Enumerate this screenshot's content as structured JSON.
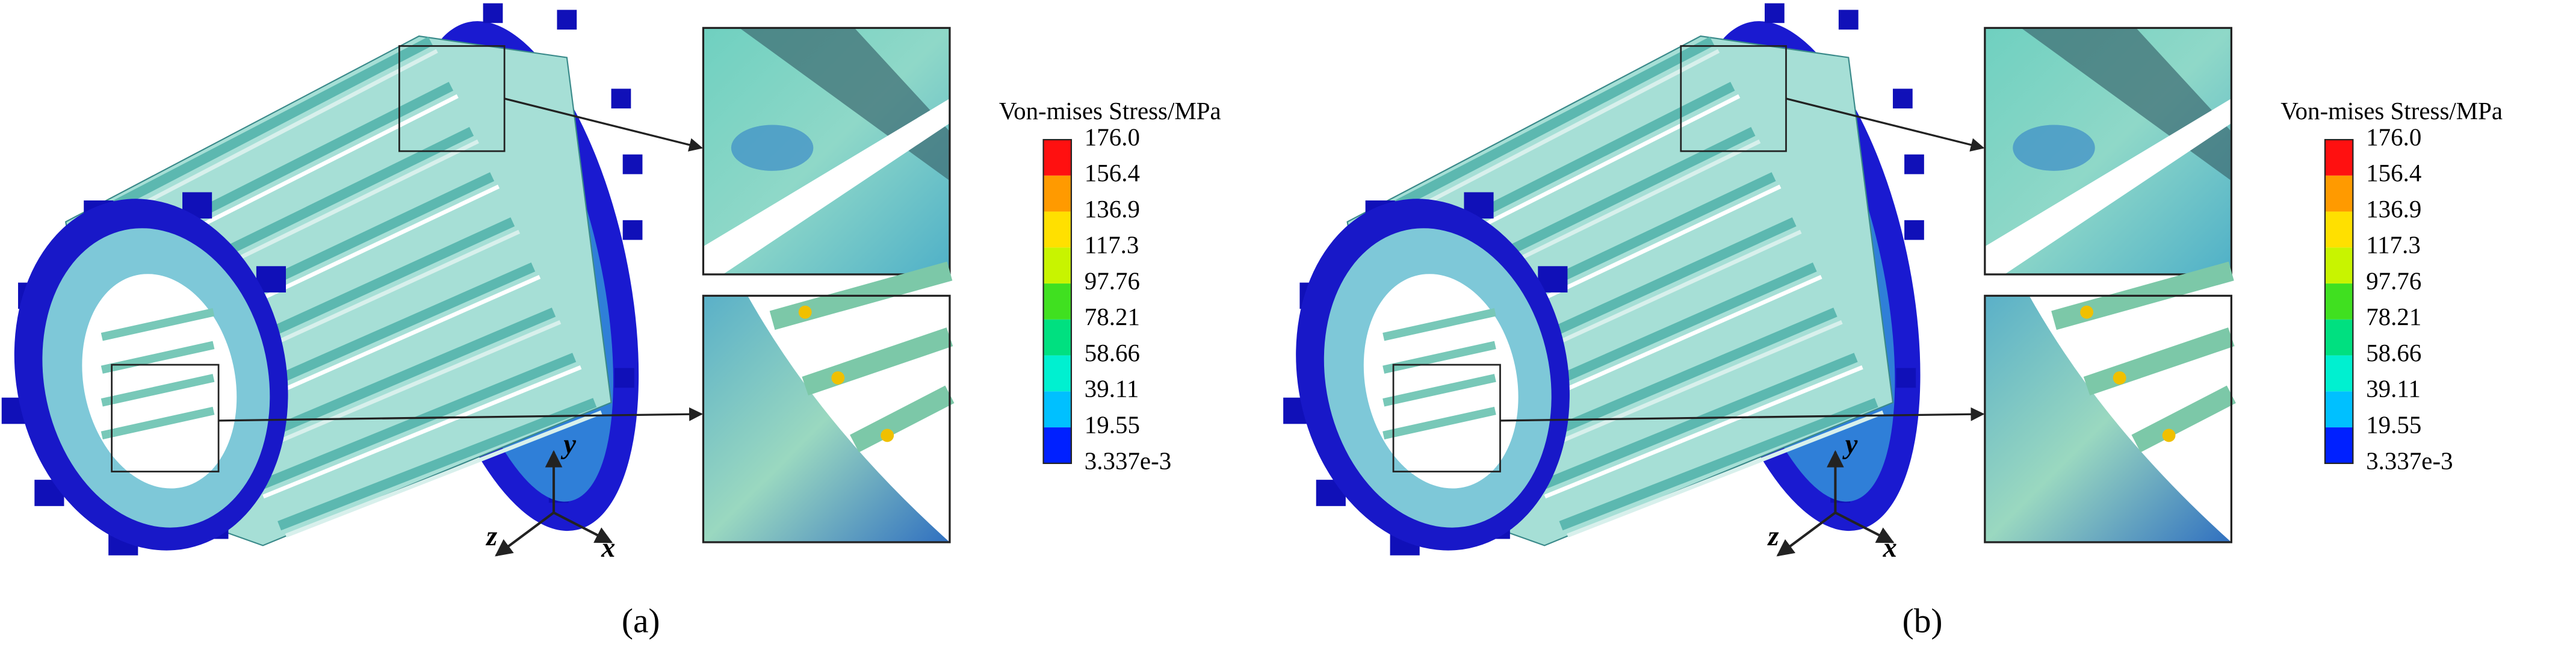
{
  "panels": [
    {
      "caption": "(a)",
      "legend": {
        "title": "Von-mises Stress/MPa",
        "labels": [
          "176.0",
          "156.4",
          "136.9",
          "117.3",
          "97.76",
          "78.21",
          "58.66",
          "39.11",
          "19.55",
          "3.337e-3"
        ]
      },
      "axes": {
        "x": "x",
        "y": "y",
        "z": "z"
      }
    },
    {
      "caption": "(b)",
      "legend": {
        "title": "Von-mises Stress/MPa",
        "labels": [
          "176.0",
          "156.4",
          "136.9",
          "117.3",
          "97.76",
          "78.21",
          "58.66",
          "39.11",
          "19.55",
          "3.337e-3"
        ]
      },
      "axes": {
        "x": "x",
        "y": "y",
        "z": "z"
      }
    }
  ]
}
